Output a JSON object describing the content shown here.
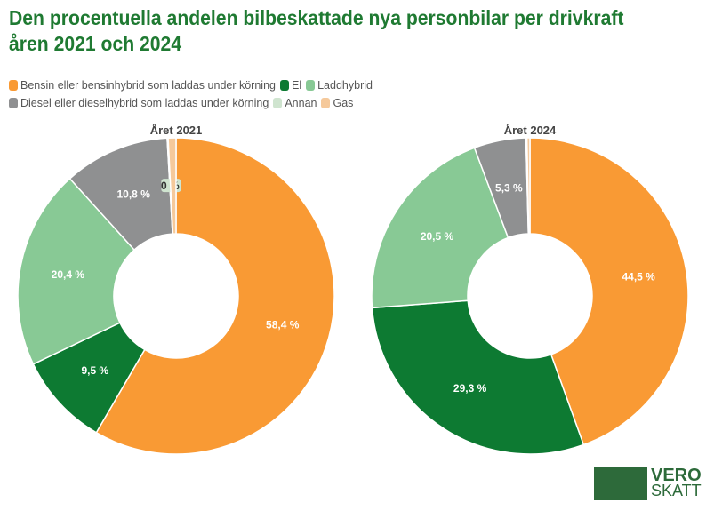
{
  "chart_data": {
    "type": "pie",
    "title": "Den procentuella andelen bilbeskattade nya personbilar per drivkraft åren 2021 och 2024",
    "legend": [
      {
        "name": "Bensin eller bensinhybrid som laddas under körning",
        "color": "#f99a34"
      },
      {
        "name": "El",
        "color": "#0d7a32"
      },
      {
        "name": "Laddhybrid",
        "color": "#88c995"
      },
      {
        "name": "Diesel eller dieselhybrid som laddas under körning",
        "color": "#8f9091"
      },
      {
        "name": "Annan",
        "color": "#cfe4cf"
      },
      {
        "name": "Gas",
        "color": "#f5c99b"
      }
    ],
    "charts": [
      {
        "title": "Året 2021",
        "values": [
          58.4,
          9.5,
          20.4,
          10.8,
          0.1,
          0.8
        ],
        "labels": [
          "58,4 %",
          "9,5 %",
          "20,4 %",
          "10,8 %",
          "0 %",
          ""
        ]
      },
      {
        "title": "Året 2024",
        "values": [
          44.5,
          29.3,
          20.5,
          5.3,
          0.1,
          0.3
        ],
        "labels": [
          "44,5 %",
          "29,3 %",
          "20,5 %",
          "5,3 %",
          "",
          ""
        ]
      }
    ]
  },
  "logo": {
    "line1": "VERO",
    "line2": "SKATT"
  }
}
